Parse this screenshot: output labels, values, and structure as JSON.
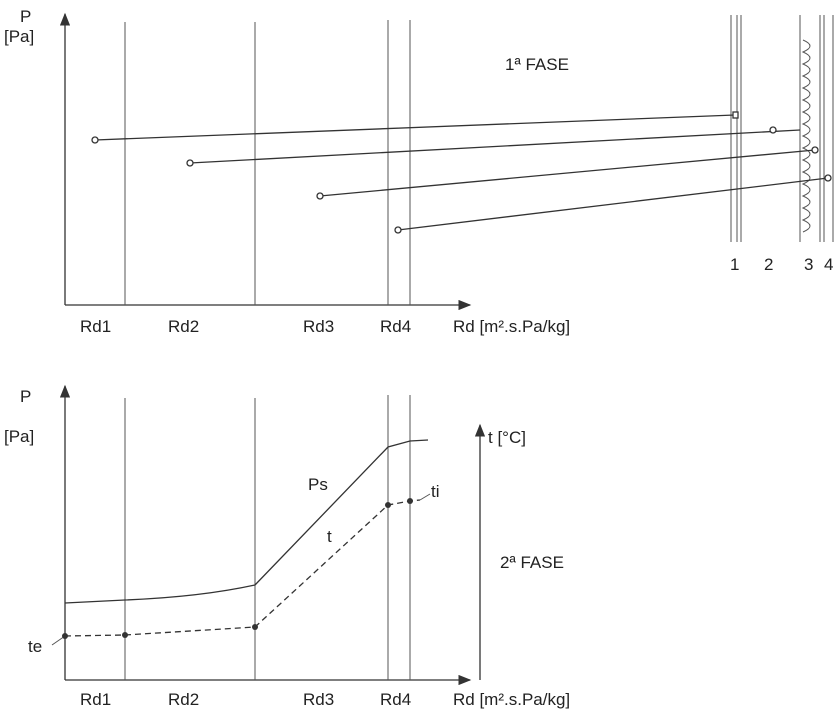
{
  "top": {
    "axis_symbol": "P",
    "axis_unit": "[Pa]",
    "phase": "1ª FASE",
    "layers": [
      "1",
      "2",
      "3",
      "4"
    ],
    "x_labels": [
      "Rd1",
      "Rd2",
      "Rd3",
      "Rd4"
    ],
    "x_axis_label": "Rd [m².s.Pa/kg]"
  },
  "bottom": {
    "axis_symbol": "P",
    "axis_unit": "[Pa]",
    "right_axis_label": "t [°C]",
    "curve_ps": "Ps",
    "curve_t": "t",
    "t_inner": "ti",
    "t_outer": "te",
    "phase": "2ª FASE",
    "x_labels": [
      "Rd1",
      "Rd2",
      "Rd3",
      "Rd4"
    ],
    "x_axis_label": "Rd [m².s.Pa/kg]"
  }
}
